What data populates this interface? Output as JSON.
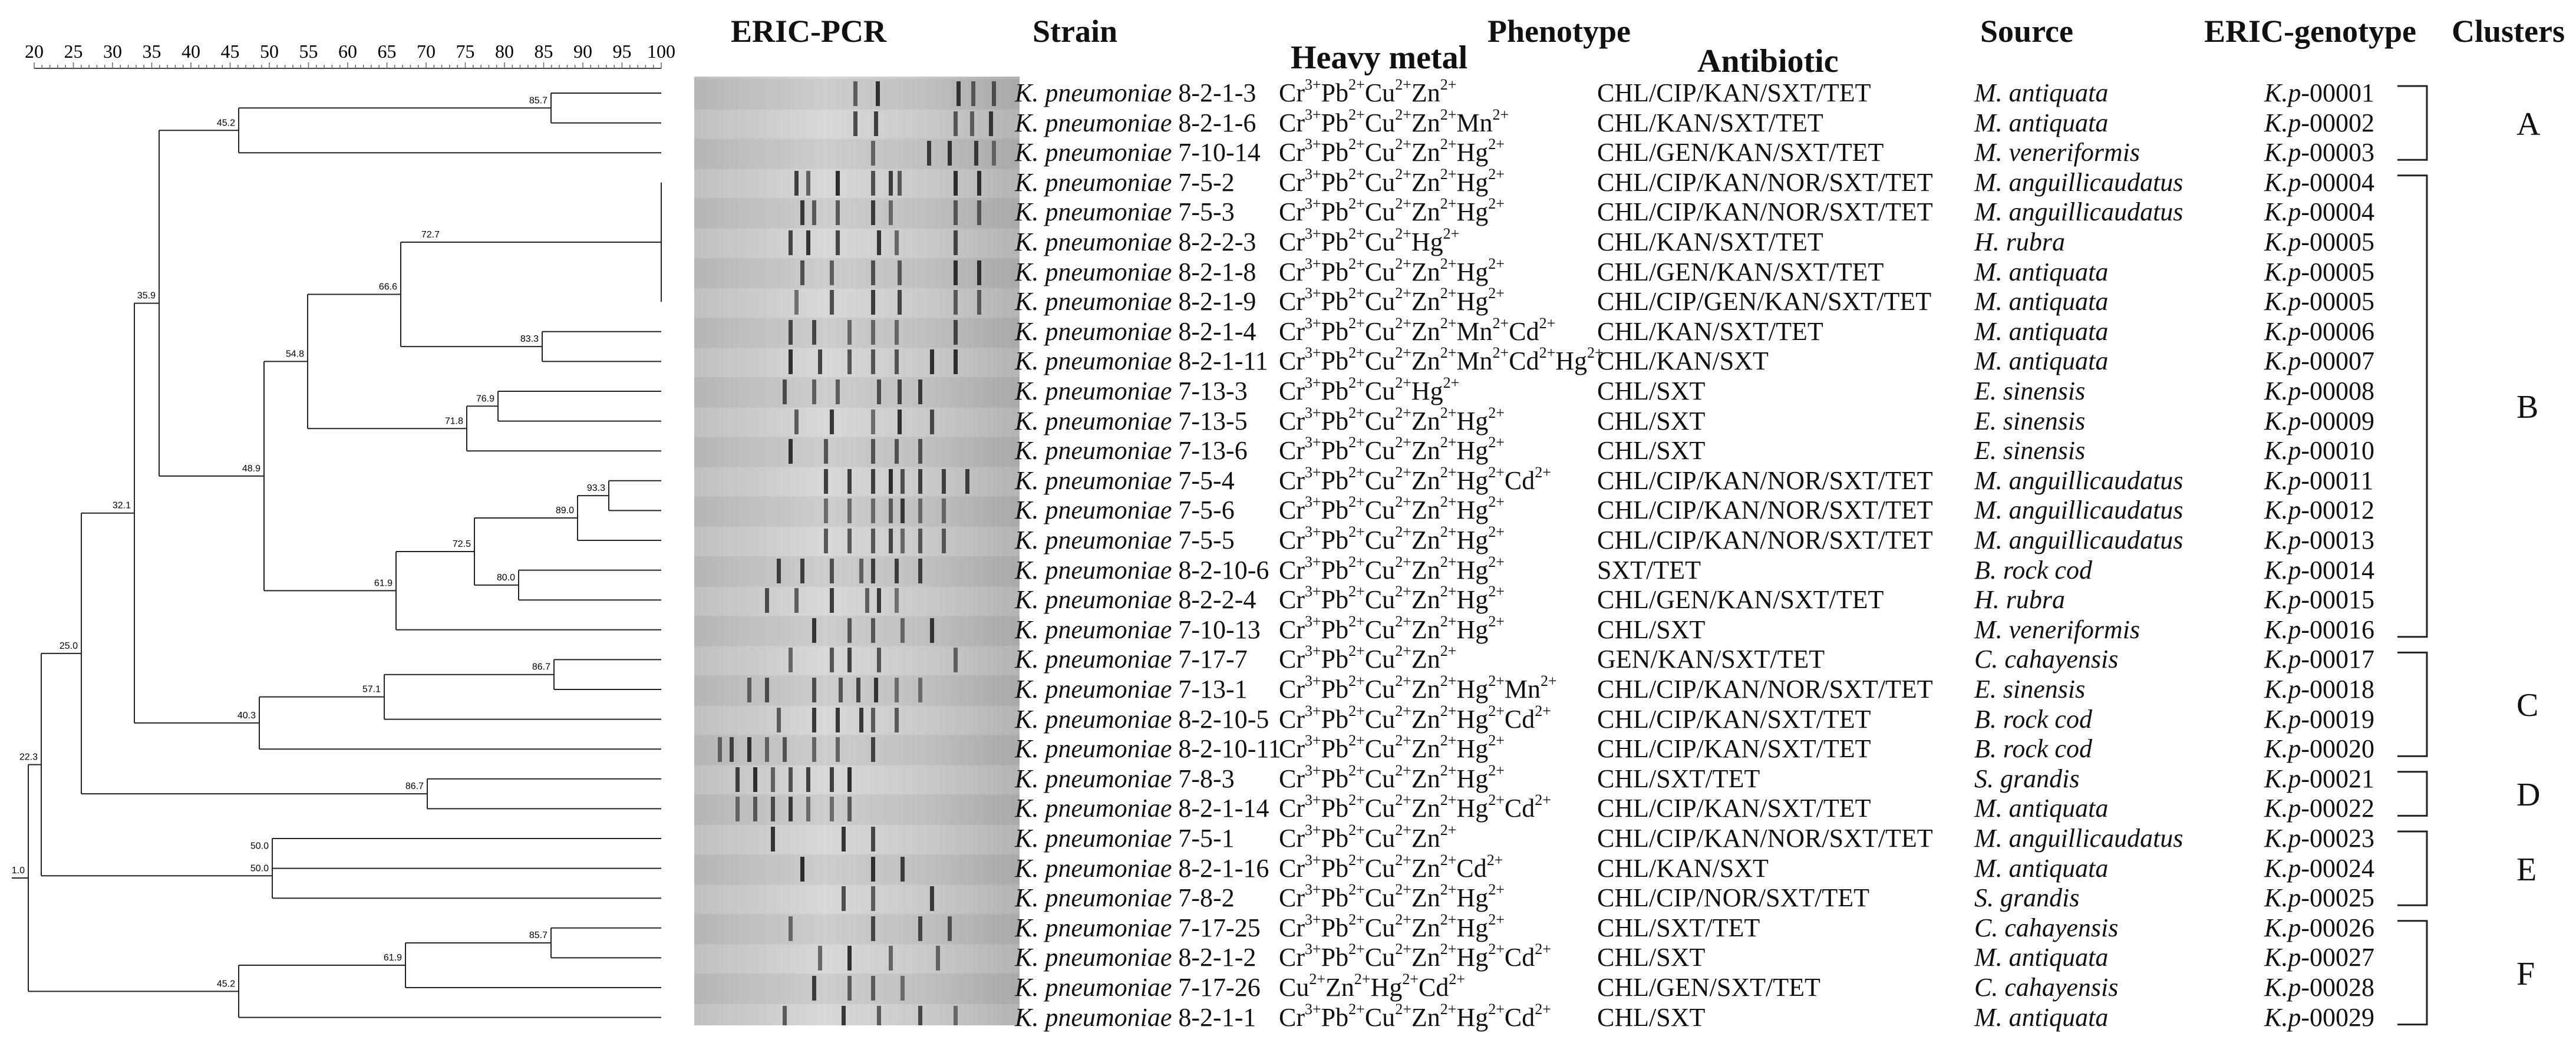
{
  "headers": {
    "eric_pcr": "ERIC-PCR",
    "strain": "Strain",
    "phenotype": "Phenotype",
    "heavy_metal": "Heavy metal",
    "antibiotic": "Antibiotic",
    "source": "Source",
    "eric_genotype": "ERIC-genotype",
    "clusters": "Clusters"
  },
  "scale": {
    "ticks": [
      "20",
      "25",
      "30",
      "35",
      "40",
      "45",
      "50",
      "55",
      "60",
      "65",
      "70",
      "75",
      "80",
      "85",
      "90",
      "95",
      "100"
    ]
  },
  "tree": {
    "node_labels": [
      "85.7",
      "45.2",
      "72.7",
      "66.6",
      "83.3",
      "35.9",
      "54.8",
      "76.9",
      "71.8",
      "48.9",
      "93.3",
      "89.0",
      "72.5",
      "61.9",
      "80.0",
      "32.1",
      "25.0",
      "86.7",
      "57.1",
      "40.3",
      "86.7",
      "22.3",
      "50.0",
      "50.0",
      "85.7",
      "61.9",
      "45.2",
      "1.0"
    ],
    "_node_label_order": "first entry labels node n0; order matches dendrogram script"
  },
  "rows": [
    {
      "sp": "K. pneumoniae",
      "id": "8-2-1-3",
      "metal": [
        [
          "Cr",
          "3+"
        ],
        [
          "Pb",
          "2+"
        ],
        [
          "Cu",
          "2+"
        ],
        [
          "Zn",
          "2+"
        ]
      ],
      "antibiotic": "CHL/CIP/KAN/SXT/TET",
      "source": "M. antiquata",
      "genotype_pre": "K.p",
      "genotype": "-00001"
    },
    {
      "sp": "K. pneumoniae",
      "id": "8-2-1-6",
      "metal": [
        [
          "Cr",
          "3+"
        ],
        [
          "Pb",
          "2+"
        ],
        [
          "Cu",
          "2+"
        ],
        [
          "Zn",
          "2+"
        ],
        [
          "Mn",
          "2+"
        ]
      ],
      "antibiotic": "CHL/KAN/SXT/TET",
      "source": "M. antiquata",
      "genotype_pre": "K.p",
      "genotype": "-00002"
    },
    {
      "sp": "K. pneumoniae",
      "id": "7-10-14",
      "metal": [
        [
          "Cr",
          "3+"
        ],
        [
          "Pb",
          "2+"
        ],
        [
          "Cu",
          "2+"
        ],
        [
          "Zn",
          "2+"
        ],
        [
          "Hg",
          "2+"
        ]
      ],
      "antibiotic": "CHL/GEN/KAN/SXT/TET",
      "source": "M. veneriformis",
      "genotype_pre": "K.p",
      "genotype": "-00003"
    },
    {
      "sp": "K. pneumoniae",
      "id": "7-5-2",
      "metal": [
        [
          "Cr",
          "3+"
        ],
        [
          "Pb",
          "2+"
        ],
        [
          "Cu",
          "2+"
        ],
        [
          "Zn",
          "2+"
        ],
        [
          "Hg",
          "2+"
        ]
      ],
      "antibiotic": "CHL/CIP/KAN/NOR/SXT/TET",
      "source": "M. anguillicaudatus",
      "genotype_pre": "K.p",
      "genotype": "-00004"
    },
    {
      "sp": "K. pneumoniae",
      "id": "7-5-3",
      "metal": [
        [
          "Cr",
          "3+"
        ],
        [
          "Pb",
          "2+"
        ],
        [
          "Cu",
          "2+"
        ],
        [
          "Zn",
          "2+"
        ],
        [
          "Hg",
          "2+"
        ]
      ],
      "antibiotic": "CHL/CIP/KAN/NOR/SXT/TET",
      "source": "M. anguillicaudatus",
      "genotype_pre": "K.p",
      "genotype": "-00004"
    },
    {
      "sp": "K. pneumoniae",
      "id": "8-2-2-3",
      "metal": [
        [
          "Cr",
          "3+"
        ],
        [
          "Pb",
          "2+"
        ],
        [
          "Cu",
          "2+"
        ],
        [
          "Hg",
          "2+"
        ]
      ],
      "antibiotic": "CHL/KAN/SXT/TET",
      "source": "H. rubra",
      "genotype_pre": "K.p",
      "genotype": "-00005"
    },
    {
      "sp": "K. pneumoniae",
      "id": "8-2-1-8",
      "metal": [
        [
          "Cr",
          "3+"
        ],
        [
          "Pb",
          "2+"
        ],
        [
          "Cu",
          "2+"
        ],
        [
          "Zn",
          "2+"
        ],
        [
          "Hg",
          "2+"
        ]
      ],
      "antibiotic": "CHL/GEN/KAN/SXT/TET",
      "source": "M. antiquata",
      "genotype_pre": "K.p",
      "genotype": "-00005"
    },
    {
      "sp": "K. pneumoniae",
      "id": "8-2-1-9",
      "metal": [
        [
          "Cr",
          "3+"
        ],
        [
          "Pb",
          "2+"
        ],
        [
          "Cu",
          "2+"
        ],
        [
          "Zn",
          "2+"
        ],
        [
          "Hg",
          "2+"
        ]
      ],
      "antibiotic": "CHL/CIP/GEN/KAN/SXT/TET",
      "source": "M. antiquata",
      "genotype_pre": "K.p",
      "genotype": "-00005"
    },
    {
      "sp": "K. pneumoniae",
      "id": "8-2-1-4",
      "metal": [
        [
          "Cr",
          "3+"
        ],
        [
          "Pb",
          "2+"
        ],
        [
          "Cu",
          "2+"
        ],
        [
          "Zn",
          "2+"
        ],
        [
          "Mn",
          "2+"
        ],
        [
          "Cd",
          "2+"
        ]
      ],
      "antibiotic": "CHL/KAN/SXT/TET",
      "source": "M. antiquata",
      "genotype_pre": "K.p",
      "genotype": "-00006"
    },
    {
      "sp": "K. pneumoniae",
      "id": "8-2-1-11",
      "metal": [
        [
          "Cr",
          "3+"
        ],
        [
          "Pb",
          "2+"
        ],
        [
          "Cu",
          "2+"
        ],
        [
          "Zn",
          "2+"
        ],
        [
          "Mn",
          "2+"
        ],
        [
          "Cd",
          "2+"
        ],
        [
          "Hg",
          "2+"
        ]
      ],
      "antibiotic": "CHL/KAN/SXT",
      "source": "M. antiquata",
      "genotype_pre": "K.p",
      "genotype": "-00007"
    },
    {
      "sp": "K. pneumoniae",
      "id": "7-13-3",
      "metal": [
        [
          "Cr",
          "3+"
        ],
        [
          "Pb",
          "2+"
        ],
        [
          "Cu",
          "2+"
        ],
        [
          "Hg",
          "2+"
        ]
      ],
      "antibiotic": "CHL/SXT",
      "source": "E. sinensis",
      "genotype_pre": "K.p",
      "genotype": "-00008"
    },
    {
      "sp": "K. pneumoniae",
      "id": "7-13-5",
      "metal": [
        [
          "Cr",
          "3+"
        ],
        [
          "Pb",
          "2+"
        ],
        [
          "Cu",
          "2+"
        ],
        [
          "Zn",
          "2+"
        ],
        [
          "Hg",
          "2+"
        ]
      ],
      "antibiotic": "CHL/SXT",
      "source": "E. sinensis",
      "genotype_pre": "K.p",
      "genotype": "-00009"
    },
    {
      "sp": "K. pneumoniae",
      "id": "7-13-6",
      "metal": [
        [
          "Cr",
          "3+"
        ],
        [
          "Pb",
          "2+"
        ],
        [
          "Cu",
          "2+"
        ],
        [
          "Zn",
          "2+"
        ],
        [
          "Hg",
          "2+"
        ]
      ],
      "antibiotic": "CHL/SXT",
      "source": "E. sinensis",
      "genotype_pre": "K.p",
      "genotype": "-00010"
    },
    {
      "sp": "K. pneumoniae",
      "id": "7-5-4",
      "metal": [
        [
          "Cr",
          "3+"
        ],
        [
          "Pb",
          "2+"
        ],
        [
          "Cu",
          "2+"
        ],
        [
          "Zn",
          "2+"
        ],
        [
          "Hg",
          "2+"
        ],
        [
          "Cd",
          "2+"
        ]
      ],
      "antibiotic": "CHL/CIP/KAN/NOR/SXT/TET",
      "source": "M. anguillicaudatus",
      "genotype_pre": "K.p",
      "genotype": "-00011"
    },
    {
      "sp": "K. pneumoniae",
      "id": "7-5-6",
      "metal": [
        [
          "Cr",
          "3+"
        ],
        [
          "Pb",
          "2+"
        ],
        [
          "Cu",
          "2+"
        ],
        [
          "Zn",
          "2+"
        ],
        [
          "Hg",
          "2+"
        ]
      ],
      "antibiotic": "CHL/CIP/KAN/NOR/SXT/TET",
      "source": "M. anguillicaudatus",
      "genotype_pre": "K.p",
      "genotype": "-00012"
    },
    {
      "sp": "K. pneumoniae",
      "id": "7-5-5",
      "metal": [
        [
          "Cr",
          "3+"
        ],
        [
          "Pb",
          "2+"
        ],
        [
          "Cu",
          "2+"
        ],
        [
          "Zn",
          "2+"
        ],
        [
          "Hg",
          "2+"
        ]
      ],
      "antibiotic": "CHL/CIP/KAN/NOR/SXT/TET",
      "source": "M. anguillicaudatus",
      "genotype_pre": "K.p",
      "genotype": "-00013"
    },
    {
      "sp": "K. pneumoniae",
      "id": "8-2-10-6",
      "metal": [
        [
          "Cr",
          "3+"
        ],
        [
          "Pb",
          "2+"
        ],
        [
          "Cu",
          "2+"
        ],
        [
          "Zn",
          "2+"
        ],
        [
          "Hg",
          "2+"
        ]
      ],
      "antibiotic": "SXT/TET",
      "source": "B. rock cod",
      "genotype_pre": "K.p",
      "genotype": "-00014"
    },
    {
      "sp": "K. pneumoniae",
      "id": "8-2-2-4",
      "metal": [
        [
          "Cr",
          "3+"
        ],
        [
          "Pb",
          "2+"
        ],
        [
          "Cu",
          "2+"
        ],
        [
          "Zn",
          "2+"
        ],
        [
          "Hg",
          "2+"
        ]
      ],
      "antibiotic": "CHL/GEN/KAN/SXT/TET",
      "source": "H. rubra",
      "genotype_pre": "K.p",
      "genotype": "-00015"
    },
    {
      "sp": "K. pneumoniae",
      "id": "7-10-13",
      "metal": [
        [
          "Cr",
          "3+"
        ],
        [
          "Pb",
          "2+"
        ],
        [
          "Cu",
          "2+"
        ],
        [
          "Zn",
          "2+"
        ],
        [
          "Hg",
          "2+"
        ]
      ],
      "antibiotic": "CHL/SXT",
      "source": "M. veneriformis",
      "genotype_pre": "K.p",
      "genotype": "-00016"
    },
    {
      "sp": "K. pneumoniae",
      "id": "7-17-7",
      "metal": [
        [
          "Cr",
          "3+"
        ],
        [
          "Pb",
          "2+"
        ],
        [
          "Cu",
          "2+"
        ],
        [
          "Zn",
          "2+"
        ]
      ],
      "antibiotic": "GEN/KAN/SXT/TET",
      "source": "C. cahayensis",
      "genotype_pre": "K.p",
      "genotype": "-00017"
    },
    {
      "sp": "K. pneumoniae",
      "id": "7-13-1",
      "metal": [
        [
          "Cr",
          "3+"
        ],
        [
          "Pb",
          "2+"
        ],
        [
          "Cu",
          "2+"
        ],
        [
          "Zn",
          "2+"
        ],
        [
          "Hg",
          "2+"
        ],
        [
          "Mn",
          "2+"
        ]
      ],
      "antibiotic": "CHL/CIP/KAN/NOR/SXT/TET",
      "source": "E. sinensis",
      "genotype_pre": "K.p",
      "genotype": "-00018"
    },
    {
      "sp": "K. pneumoniae",
      "id": "8-2-10-5",
      "metal": [
        [
          "Cr",
          "3+"
        ],
        [
          "Pb",
          "2+"
        ],
        [
          "Cu",
          "2+"
        ],
        [
          "Zn",
          "2+"
        ],
        [
          "Hg",
          "2+"
        ],
        [
          "Cd",
          "2+"
        ]
      ],
      "antibiotic": "CHL/CIP/KAN/SXT/TET",
      "source": "B. rock cod",
      "genotype_pre": "K.p",
      "genotype": "-00019"
    },
    {
      "sp": "K. pneumoniae",
      "id": "8-2-10-11",
      "metal": [
        [
          "Cr",
          "3+"
        ],
        [
          "Pb",
          "2+"
        ],
        [
          "Cu",
          "2+"
        ],
        [
          "Zn",
          "2+"
        ],
        [
          "Hg",
          "2+"
        ]
      ],
      "antibiotic": "CHL/CIP/KAN/SXT/TET",
      "source": "B. rock cod",
      "genotype_pre": "K.p",
      "genotype": "-00020"
    },
    {
      "sp": "K. pneumoniae",
      "id": "7-8-3",
      "metal": [
        [
          "Cr",
          "3+"
        ],
        [
          "Pb",
          "2+"
        ],
        [
          "Cu",
          "2+"
        ],
        [
          "Zn",
          "2+"
        ],
        [
          "Hg",
          "2+"
        ]
      ],
      "antibiotic": "CHL/SXT/TET",
      "source": "S. grandis",
      "genotype_pre": "K.p",
      "genotype": "-00021"
    },
    {
      "sp": "K. pneumoniae",
      "id": "8-2-1-14",
      "metal": [
        [
          "Cr",
          "3+"
        ],
        [
          "Pb",
          "2+"
        ],
        [
          "Cu",
          "2+"
        ],
        [
          "Zn",
          "2+"
        ],
        [
          "Hg",
          "2+"
        ],
        [
          "Cd",
          "2+"
        ]
      ],
      "antibiotic": "CHL/CIP/KAN/SXT/TET",
      "source": "M. antiquata",
      "genotype_pre": "K.p",
      "genotype": "-00022"
    },
    {
      "sp": "K. pneumoniae",
      "id": "7-5-1",
      "metal": [
        [
          "Cr",
          "3+"
        ],
        [
          "Pb",
          "2+"
        ],
        [
          "Cu",
          "2+"
        ],
        [
          "Zn",
          "2+"
        ]
      ],
      "antibiotic": "CHL/CIP/KAN/NOR/SXT/TET",
      "source": "M. anguillicaudatus",
      "genotype_pre": "K.p",
      "genotype": "-00023"
    },
    {
      "sp": "K. pneumoniae",
      "id": "8-2-1-16",
      "metal": [
        [
          "Cr",
          "3+"
        ],
        [
          "Pb",
          "2+"
        ],
        [
          "Cu",
          "2+"
        ],
        [
          "Zn",
          "2+"
        ],
        [
          "Cd",
          "2+"
        ]
      ],
      "antibiotic": "CHL/KAN/SXT",
      "source": "M. antiquata",
      "genotype_pre": "K.p",
      "genotype": "-00024"
    },
    {
      "sp": "K. pneumoniae",
      "id": "7-8-2",
      "metal": [
        [
          "Cr",
          "3+"
        ],
        [
          "Pb",
          "2+"
        ],
        [
          "Cu",
          "2+"
        ],
        [
          "Zn",
          "2+"
        ],
        [
          "Hg",
          "2+"
        ]
      ],
      "antibiotic": "CHL/CIP/NOR/SXT/TET",
      "source": "S. grandis",
      "genotype_pre": "K.p",
      "genotype": "-00025"
    },
    {
      "sp": "K. pneumoniae",
      "id": "7-17-25",
      "metal": [
        [
          "Cr",
          "3+"
        ],
        [
          "Pb",
          "2+"
        ],
        [
          "Cu",
          "2+"
        ],
        [
          "Zn",
          "2+"
        ],
        [
          "Hg",
          "2+"
        ]
      ],
      "antibiotic": "CHL/SXT/TET",
      "source": "C. cahayensis",
      "genotype_pre": "K.p",
      "genotype": "-00026"
    },
    {
      "sp": "K. pneumoniae",
      "id": "8-2-1-2",
      "metal": [
        [
          "Cr",
          "3+"
        ],
        [
          "Pb",
          "2+"
        ],
        [
          "Cu",
          "2+"
        ],
        [
          "Zn",
          "2+"
        ],
        [
          "Hg",
          "2+"
        ],
        [
          "Cd",
          "2+"
        ]
      ],
      "antibiotic": "CHL/SXT",
      "source": "M. antiquata",
      "genotype_pre": "K.p",
      "genotype": "-00027"
    },
    {
      "sp": "K. pneumoniae",
      "id": "7-17-26",
      "metal": [
        [
          "Cu",
          "2+"
        ],
        [
          "Zn",
          "2+"
        ],
        [
          "Hg",
          "2+"
        ],
        [
          "Cd",
          "2+"
        ]
      ],
      "antibiotic": "CHL/GEN/SXT/TET",
      "source": "C. cahayensis",
      "genotype_pre": "K.p",
      "genotype": "-00028"
    },
    {
      "sp": "K. pneumoniae",
      "id": "8-2-1-1",
      "metal": [
        [
          "Cr",
          "3+"
        ],
        [
          "Pb",
          "2+"
        ],
        [
          "Cu",
          "2+"
        ],
        [
          "Zn",
          "2+"
        ],
        [
          "Hg",
          "2+"
        ],
        [
          "Cd",
          "2+"
        ]
      ],
      "antibiotic": "CHL/SXT",
      "source": "M. antiquata",
      "genotype_pre": "K.p",
      "genotype": "-00029"
    }
  ],
  "clusters": [
    {
      "label": "A",
      "from_row": 0,
      "to_row": 2
    },
    {
      "label": "B",
      "from_row": 3,
      "to_row": 18
    },
    {
      "label": "C",
      "from_row": 19,
      "to_row": 22
    },
    {
      "label": "D",
      "from_row": 23,
      "to_row": 24
    },
    {
      "label": "E",
      "from_row": 25,
      "to_row": 27
    },
    {
      "label": "F",
      "from_row": 28,
      "to_row": 31
    }
  ]
}
